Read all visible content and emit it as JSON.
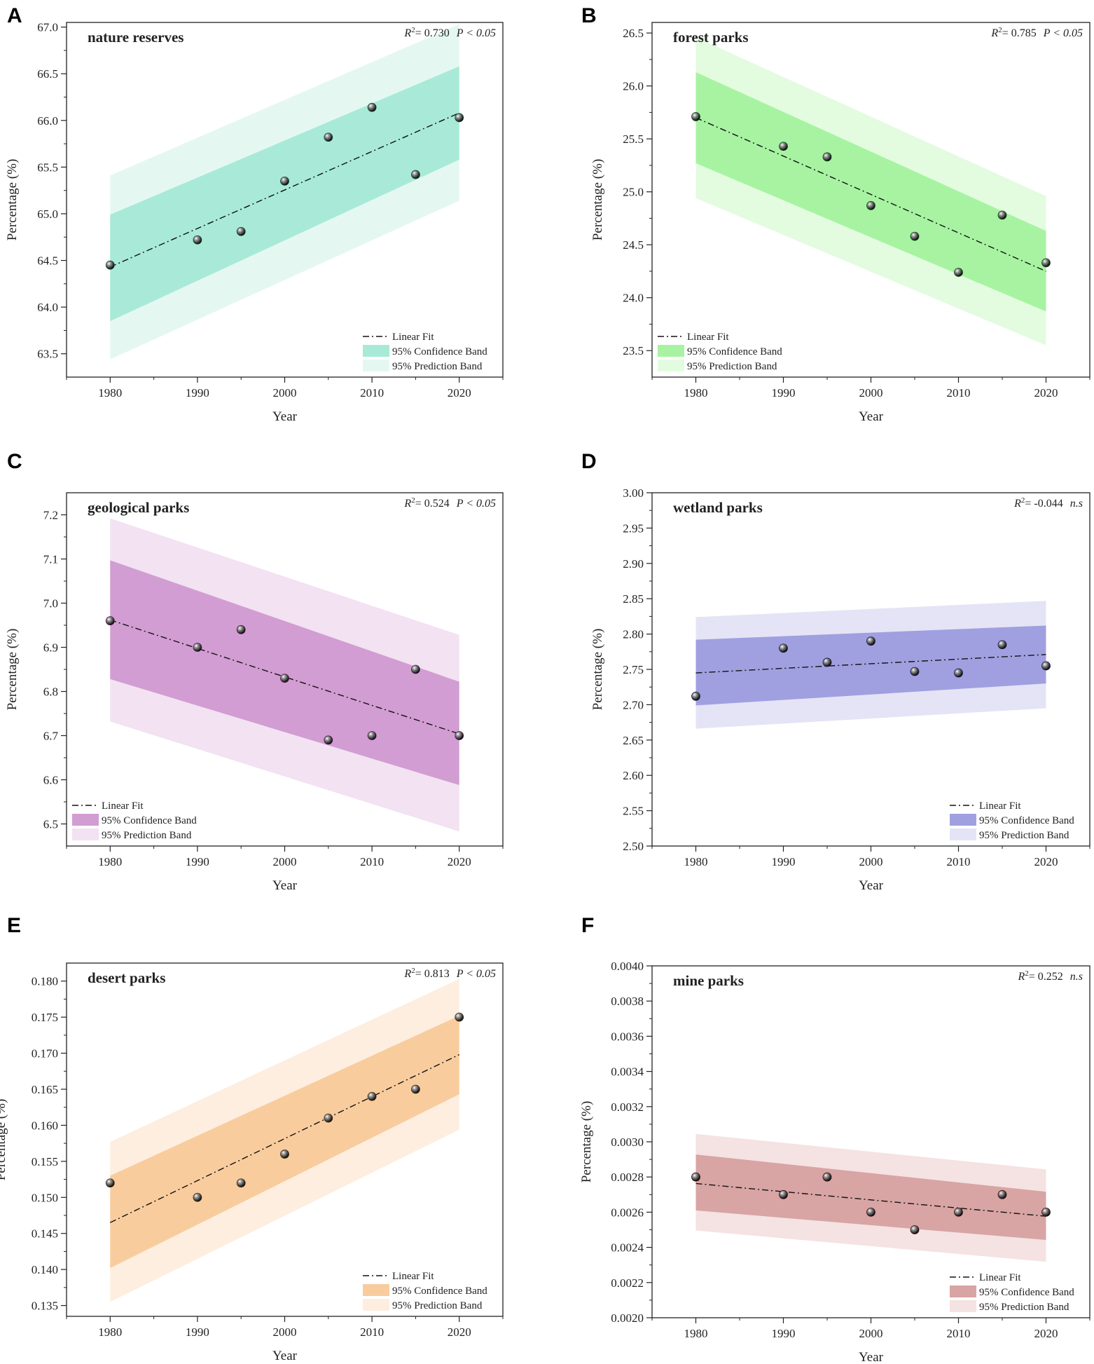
{
  "figure": {
    "panels_count": 6
  },
  "chart_data": [
    {
      "panel": "A",
      "type": "scatter",
      "title": "nature reserves",
      "xlabel": "Year",
      "ylabel": "Percentage (%)",
      "r2_label": "= 0.730",
      "sig_label": "P < 0.05",
      "x": [
        1980,
        1990,
        1995,
        2000,
        2005,
        2010,
        2015,
        2020
      ],
      "y": [
        64.45,
        64.72,
        64.81,
        65.35,
        65.82,
        66.14,
        65.42,
        66.03
      ],
      "fit": [
        64.43,
        66.08
      ],
      "conf_lower": [
        63.85,
        65.58
      ],
      "conf_upper": [
        64.99,
        66.58
      ],
      "pred_lower": [
        63.44,
        65.14
      ],
      "pred_upper": [
        65.41,
        67.03
      ],
      "xlim": [
        1975,
        2025
      ],
      "ylim": [
        63.25,
        67.05
      ],
      "xticks": [
        "1980",
        "1990",
        "2000",
        "2010",
        "2020"
      ],
      "yticks": [
        "63.5",
        "64.0",
        "64.5",
        "65.0",
        "65.5",
        "66.0",
        "66.5",
        "67.0"
      ],
      "conf_color": "#a8ead7",
      "pred_color": "#e4f8f1",
      "point_color": "#0e4a2e",
      "legend": [
        "Linear Fit",
        "95% Confidence Band",
        "95% Prediction Band"
      ],
      "legend_position": "bottom-right"
    },
    {
      "panel": "B",
      "type": "scatter",
      "title": "forest parks",
      "xlabel": "Year",
      "ylabel": "Percentage (%)",
      "r2_label": "= 0.785",
      "sig_label": "P < 0.05",
      "x": [
        1980,
        1990,
        1995,
        2000,
        2005,
        2010,
        2015,
        2020
      ],
      "y": [
        25.71,
        25.43,
        25.33,
        24.87,
        24.58,
        24.24,
        24.78,
        24.33
      ],
      "fit": [
        25.7,
        24.25
      ],
      "conf_lower": [
        25.27,
        23.87
      ],
      "conf_upper": [
        26.13,
        24.63
      ],
      "pred_lower": [
        24.94,
        23.55
      ],
      "pred_upper": [
        26.46,
        24.96
      ],
      "xlim": [
        1975,
        2025
      ],
      "ylim": [
        23.25,
        26.6
      ],
      "xticks": [
        "1980",
        "1990",
        "2000",
        "2010",
        "2020"
      ],
      "yticks": [
        "23.5",
        "24.0",
        "24.5",
        "25.0",
        "25.5",
        "26.0",
        "26.5"
      ],
      "conf_color": "#a7f3a2",
      "pred_color": "#e3fce0",
      "point_color": "#0d4a1a",
      "legend": [
        "Linear Fit",
        "95% Confidence Band",
        "95% Prediction Band"
      ],
      "legend_position": "bottom-left"
    },
    {
      "panel": "C",
      "type": "scatter",
      "title": "geological parks",
      "xlabel": "Year",
      "ylabel": "Percentage (%)",
      "r2_label": "= 0.524",
      "sig_label": "P < 0.05",
      "x": [
        1980,
        1990,
        1995,
        2000,
        2005,
        2010,
        2015,
        2020
      ],
      "y": [
        6.96,
        6.9,
        6.94,
        6.83,
        6.69,
        6.7,
        6.85,
        6.7
      ],
      "fit": [
        6.962,
        6.704
      ],
      "conf_lower": [
        6.828,
        6.588
      ],
      "conf_upper": [
        7.097,
        6.822
      ],
      "pred_lower": [
        6.732,
        6.483
      ],
      "pred_upper": [
        7.192,
        6.928
      ],
      "xlim": [
        1975,
        2025
      ],
      "ylim": [
        6.45,
        7.25
      ],
      "xticks": [
        "1980",
        "1990",
        "2000",
        "2010",
        "2020"
      ],
      "yticks": [
        "6.5",
        "6.6",
        "6.7",
        "6.8",
        "6.9",
        "7.0",
        "7.1",
        "7.2"
      ],
      "conf_color": "#d29dd2",
      "pred_color": "#f2e2f2",
      "point_color": "#4a1a4a",
      "legend": [
        "Linear Fit",
        "95% Confidence Band",
        "95% Prediction Band"
      ],
      "legend_position": "bottom-left"
    },
    {
      "panel": "D",
      "type": "scatter",
      "title": "wetland parks",
      "xlabel": "Year",
      "ylabel": "Percentage (%)",
      "r2_label": "= -0.044",
      "sig_label": "n.s",
      "x": [
        1980,
        1990,
        1995,
        2000,
        2005,
        2010,
        2015,
        2020
      ],
      "y": [
        2.712,
        2.78,
        2.76,
        2.79,
        2.747,
        2.745,
        2.785,
        2.755
      ],
      "fit": [
        2.745,
        2.771
      ],
      "conf_lower": [
        2.699,
        2.73
      ],
      "conf_upper": [
        2.792,
        2.812
      ],
      "pred_lower": [
        2.666,
        2.695
      ],
      "pred_upper": [
        2.824,
        2.847
      ],
      "xlim": [
        1975,
        2025
      ],
      "ylim": [
        2.5,
        3.0
      ],
      "xticks": [
        "1980",
        "1990",
        "2000",
        "2010",
        "2020"
      ],
      "yticks": [
        "2.50",
        "2.55",
        "2.60",
        "2.65",
        "2.70",
        "2.75",
        "2.80",
        "2.85",
        "2.90",
        "2.95",
        "3.00"
      ],
      "conf_color": "#a0a0e0",
      "pred_color": "#e4e4f6",
      "point_color": "#1a1a4a",
      "legend": [
        "Linear Fit",
        "95% Confidence Band",
        "95% Prediction Band"
      ],
      "legend_position": "bottom-right"
    },
    {
      "panel": "E",
      "type": "scatter",
      "title": "desert parks",
      "xlabel": "Year",
      "ylabel": "Percentage (%)",
      "r2_label": "= 0.813",
      "sig_label": "P < 0.05",
      "x": [
        1980,
        1990,
        1995,
        2000,
        2005,
        2010,
        2015,
        2020
      ],
      "y": [
        0.152,
        0.15,
        0.152,
        0.156,
        0.161,
        0.164,
        0.165,
        0.175
      ],
      "fit": [
        0.1465,
        0.1698
      ],
      "conf_lower": [
        0.1402,
        0.1643
      ],
      "conf_upper": [
        0.153,
        0.1752
      ],
      "pred_lower": [
        0.1355,
        0.1594
      ],
      "pred_upper": [
        0.1577,
        0.1803
      ],
      "xlim": [
        1975,
        2025
      ],
      "ylim": [
        0.1335,
        0.1825
      ],
      "xticks": [
        "1980",
        "1990",
        "2000",
        "2010",
        "2020"
      ],
      "yticks": [
        "0.135",
        "0.140",
        "0.145",
        "0.150",
        "0.155",
        "0.160",
        "0.165",
        "0.170",
        "0.175",
        "0.180"
      ],
      "conf_color": "#f9cc9e",
      "pred_color": "#fdeee0",
      "point_color": "#4a2a10",
      "legend": [
        "Linear Fit",
        "95% Confidence Band",
        "95% Prediction Band"
      ],
      "legend_position": "bottom-right"
    },
    {
      "panel": "F",
      "type": "scatter",
      "title": "mine parks",
      "xlabel": "Year",
      "ylabel": "Percentage (%)",
      "r2_label": "= 0.252",
      "sig_label": "n.s",
      "x": [
        1980,
        1990,
        1995,
        2000,
        2005,
        2010,
        2015,
        2020
      ],
      "y": [
        0.0028,
        0.0027,
        0.0028,
        0.0026,
        0.0025,
        0.0026,
        0.0027,
        0.0026
      ],
      "fit": [
        0.002763,
        0.002577
      ],
      "conf_lower": [
        0.00261,
        0.002442
      ],
      "conf_upper": [
        0.002928,
        0.002716
      ],
      "pred_lower": [
        0.002496,
        0.002318
      ],
      "pred_upper": [
        0.003045,
        0.002843
      ],
      "xlim": [
        1975,
        2025
      ],
      "ylim": [
        0.002,
        0.004
      ],
      "xticks": [
        "1980",
        "1990",
        "2000",
        "2010",
        "2020"
      ],
      "yticks": [
        "0.0020",
        "0.0022",
        "0.0024",
        "0.0026",
        "0.0028",
        "0.0030",
        "0.0032",
        "0.0034",
        "0.0036",
        "0.0038",
        "0.0040"
      ],
      "conf_color": "#d8a4a4",
      "pred_color": "#f5e2e2",
      "point_color": "#3a1010",
      "legend": [
        "Linear Fit",
        "95% Confidence Band",
        "95% Prediction Band"
      ],
      "legend_position": "bottom-right"
    }
  ]
}
